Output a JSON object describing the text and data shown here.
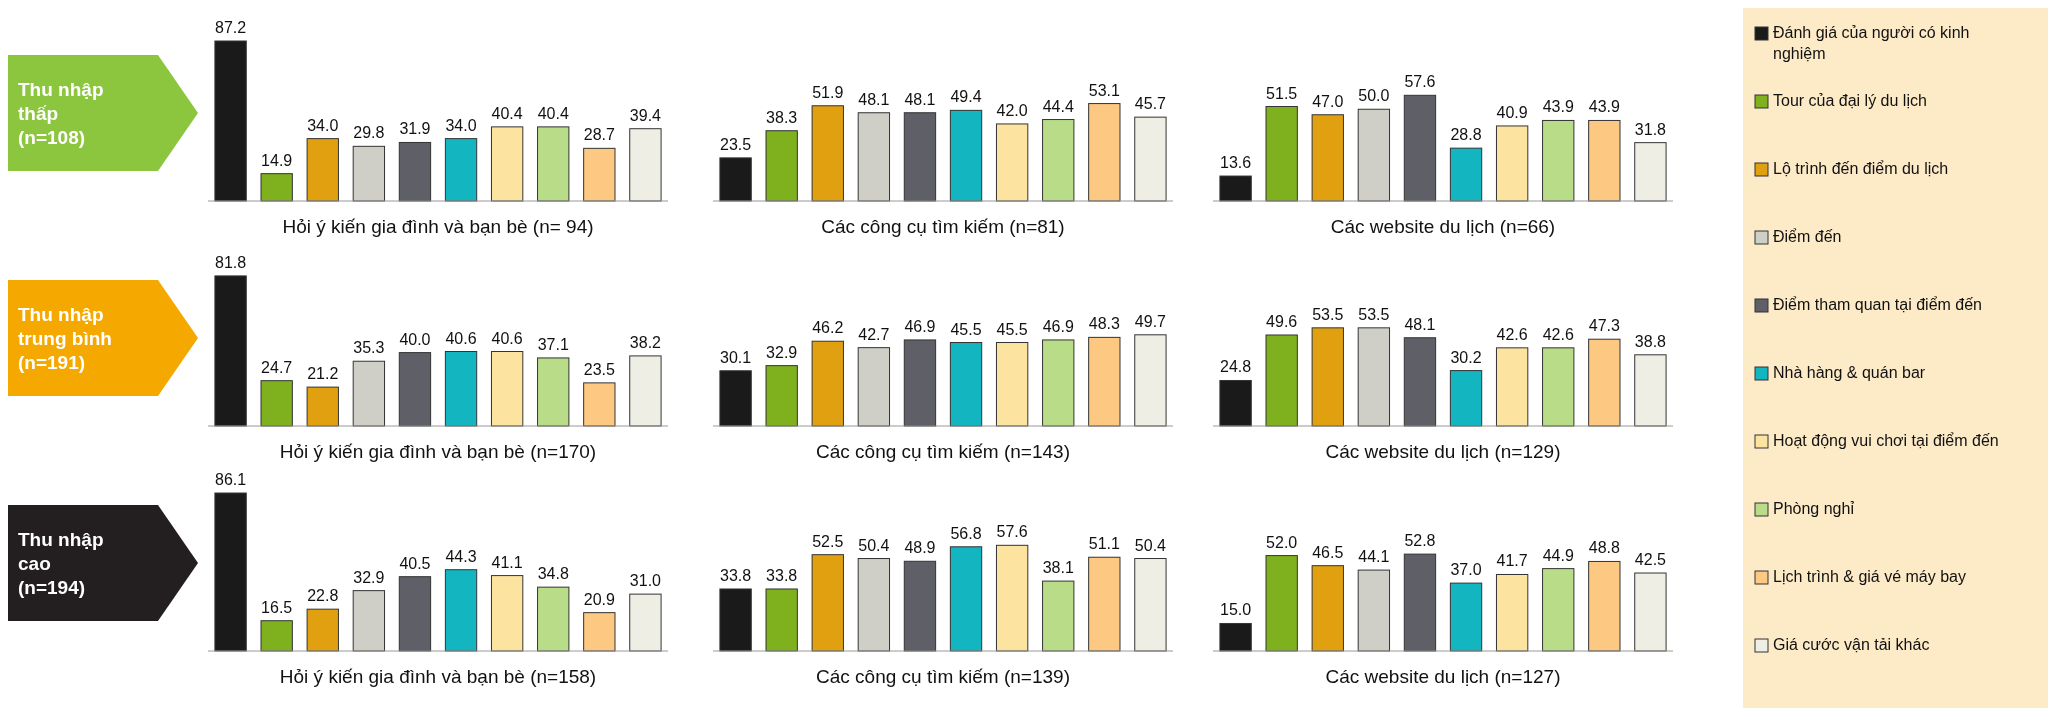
{
  "chart_data": [
    {
      "type": "bar",
      "categories": [
        null,
        null,
        null,
        null,
        null,
        null,
        null,
        null,
        null,
        null
      ],
      "xlabel": "Hỏi ý kiến gia đình và bạn bè (n= 94)",
      "annotations": [
        "Thu nhập thấp (n=108)"
      ],
      "colors": [
        "#1a1a1a",
        "#7fb01e",
        "#e0a010",
        "#cfcfc8",
        "#5f5f68",
        "#13b5c0",
        "#fde3a0",
        "#b8dc88",
        "#fcc882",
        "#eeeee4"
      ],
      "values": [
        87.2,
        14.9,
        34.0,
        29.8,
        31.9,
        34.0,
        40.4,
        40.4,
        28.7,
        39.4
      ],
      "value_labels": [
        "87.2",
        "14.9",
        "34.0",
        "29.8",
        "31.9",
        "34.0",
        "40.4",
        "40.4",
        "28.7",
        "39.4"
      ]
    },
    {
      "type": "bar",
      "categories": [
        null,
        null,
        null,
        null,
        null,
        null,
        null,
        null,
        null,
        null
      ],
      "xlabel": "Các công cụ tìm kiếm (n=81)",
      "colors": [
        "#1a1a1a",
        "#7fb01e",
        "#e0a010",
        "#cfcfc8",
        "#5f5f68",
        "#13b5c0",
        "#fde3a0",
        "#b8dc88",
        "#fcc882",
        "#eeeee4"
      ],
      "values": [
        23.5,
        38.3,
        51.9,
        48.1,
        48.1,
        49.4,
        42.0,
        44.4,
        53.1,
        45.7
      ],
      "value_labels": [
        "23.5",
        "38.3",
        "51.9",
        "48.1",
        "48.1",
        "49.4",
        "42.0",
        "44.4",
        "53.1",
        "45.7"
      ]
    },
    {
      "type": "bar",
      "categories": [
        null,
        null,
        null,
        null,
        null,
        null,
        null,
        null,
        null,
        null
      ],
      "xlabel": "Các website du lịch (n=66)",
      "colors": [
        "#1a1a1a",
        "#7fb01e",
        "#e0a010",
        "#cfcfc8",
        "#5f5f68",
        "#13b5c0",
        "#fde3a0",
        "#b8dc88",
        "#fcc882",
        "#eeeee4"
      ],
      "values": [
        13.6,
        51.5,
        47.0,
        50.0,
        57.6,
        28.8,
        40.9,
        43.9,
        43.9,
        31.8
      ],
      "value_labels": [
        "13.6",
        "51.5",
        "47.0",
        "50.0",
        "57.6",
        "28.8",
        "40.9",
        "43.9",
        "43.9",
        "31.8"
      ]
    },
    {
      "type": "bar",
      "categories": [
        null,
        null,
        null,
        null,
        null,
        null,
        null,
        null,
        null,
        null
      ],
      "xlabel": "Hỏi ý kiến gia đình và bạn bè (n=170)",
      "annotations": [
        "Thu nhập trung bình (n=191)"
      ],
      "colors": [
        "#1a1a1a",
        "#7fb01e",
        "#e0a010",
        "#cfcfc8",
        "#5f5f68",
        "#13b5c0",
        "#fde3a0",
        "#b8dc88",
        "#fcc882",
        "#eeeee4"
      ],
      "values": [
        81.8,
        24.7,
        21.2,
        35.3,
        40.0,
        40.6,
        40.6,
        37.1,
        23.5,
        38.2
      ],
      "value_labels": [
        "81.8",
        "24.7",
        "21.2",
        "35.3",
        "40.0",
        "40.6",
        "40.6",
        "37.1",
        "23.5",
        "38.2"
      ]
    },
    {
      "type": "bar",
      "categories": [
        null,
        null,
        null,
        null,
        null,
        null,
        null,
        null,
        null,
        null
      ],
      "xlabel": "Các công cụ tìm kiếm (n=143)",
      "colors": [
        "#1a1a1a",
        "#7fb01e",
        "#e0a010",
        "#cfcfc8",
        "#5f5f68",
        "#13b5c0",
        "#fde3a0",
        "#b8dc88",
        "#fcc882",
        "#eeeee4"
      ],
      "values": [
        30.1,
        32.9,
        46.2,
        42.7,
        46.9,
        45.5,
        45.5,
        46.9,
        48.3,
        49.7
      ],
      "value_labels": [
        "30.1",
        "32.9",
        "46.2",
        "42.7",
        "46.9",
        "45.5",
        "45.5",
        "46.9",
        "48.3",
        "49.7"
      ]
    },
    {
      "type": "bar",
      "categories": [
        null,
        null,
        null,
        null,
        null,
        null,
        null,
        null,
        null,
        null
      ],
      "xlabel": "Các website du lịch (n=129)",
      "colors": [
        "#1a1a1a",
        "#7fb01e",
        "#e0a010",
        "#cfcfc8",
        "#5f5f68",
        "#13b5c0",
        "#fde3a0",
        "#b8dc88",
        "#fcc882",
        "#eeeee4"
      ],
      "values": [
        24.8,
        49.6,
        53.5,
        53.5,
        48.1,
        30.2,
        42.6,
        42.6,
        47.3,
        38.8
      ],
      "value_labels": [
        "24.8",
        "49.6",
        "53.5",
        "53.5",
        "48.1",
        "30.2",
        "42.6",
        "42.6",
        "47.3",
        "38.8"
      ]
    },
    {
      "type": "bar",
      "categories": [
        null,
        null,
        null,
        null,
        null,
        null,
        null,
        null,
        null,
        null
      ],
      "xlabel": "Hỏi ý kiến gia đình và bạn bè (n=158)",
      "annotations": [
        "Thu nhập cao (n=194)"
      ],
      "colors": [
        "#1a1a1a",
        "#7fb01e",
        "#e0a010",
        "#cfcfc8",
        "#5f5f68",
        "#13b5c0",
        "#fde3a0",
        "#b8dc88",
        "#fcc882",
        "#eeeee4"
      ],
      "values": [
        86.1,
        16.5,
        22.8,
        32.9,
        40.5,
        44.3,
        41.1,
        34.8,
        20.9,
        31.0
      ],
      "value_labels": [
        "86.1",
        "16.5",
        "22.8",
        "32.9",
        "40.5",
        "44.3",
        "41.1",
        "34.8",
        "20.9",
        "31.0"
      ]
    },
    {
      "type": "bar",
      "categories": [
        null,
        null,
        null,
        null,
        null,
        null,
        null,
        null,
        null,
        null
      ],
      "xlabel": "Các công cụ tìm kiếm (n=139)",
      "colors": [
        "#1a1a1a",
        "#7fb01e",
        "#e0a010",
        "#cfcfc8",
        "#5f5f68",
        "#13b5c0",
        "#fde3a0",
        "#b8dc88",
        "#fcc882",
        "#eeeee4"
      ],
      "values": [
        33.8,
        33.8,
        52.5,
        50.4,
        48.9,
        56.8,
        57.6,
        38.1,
        51.1,
        50.4
      ],
      "value_labels": [
        "33.8",
        "33.8",
        "52.5",
        "50.4",
        "48.9",
        "56.8",
        "57.6",
        "38.1",
        "51.1",
        "50.4"
      ]
    },
    {
      "type": "bar",
      "categories": [
        null,
        null,
        null,
        null,
        null,
        null,
        null,
        null,
        null,
        null
      ],
      "xlabel": "Các website du lịch (n=127)",
      "colors": [
        "#1a1a1a",
        "#7fb01e",
        "#e0a010",
        "#cfcfc8",
        "#5f5f68",
        "#13b5c0",
        "#fde3a0",
        "#b8dc88",
        "#fcc882",
        "#eeeee4"
      ],
      "values": [
        15.0,
        52.0,
        46.5,
        44.1,
        52.8,
        37.0,
        41.7,
        44.9,
        48.8,
        42.5
      ],
      "value_labels": [
        "15.0",
        "52.0",
        "46.5",
        "44.1",
        "52.8",
        "37.0",
        "41.7",
        "44.9",
        "48.8",
        "42.5"
      ]
    },
    {
      "type": "other",
      "categories": [
        "Đánh giá của người có kinh nghiệm",
        "Tour của đại lý du lịch",
        "Lộ trình đến điểm du lịch",
        "Điểm đến",
        "Điểm tham quan tại điểm đến",
        "Nhà hàng & quán bar",
        "Hoạt động vui chơi tại điểm đến",
        "Phòng nghỉ",
        "Lịch trình & giá vé máy bay",
        "Giá cước vận tải khác"
      ],
      "colors": [
        "#1a1a1a",
        "#7fb01e",
        "#e0a010",
        "#cfcfc8",
        "#5f5f68",
        "#13b5c0",
        "#fde3a0",
        "#b8dc88",
        "#fcc882",
        "#eeeee4"
      ]
    }
  ]
}
